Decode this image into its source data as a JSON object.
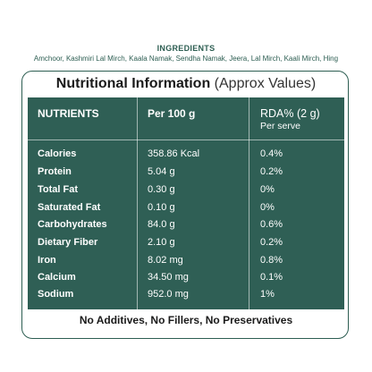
{
  "ingredients": {
    "title": "INGREDIENTS",
    "list": "Amchoor, Kashmiri Lal Mirch, Kaala Namak, Sendha Namak, Jeera, Lal Mirch, Kaali Mirch, Hing"
  },
  "card": {
    "title_bold": "Nutritional Information",
    "title_light": "(Approx Values)"
  },
  "table": {
    "headers": {
      "nutrients": "NUTRIENTS",
      "per": "Per 100 g",
      "rda": "RDA% (2 g)",
      "rda_sub": "Per serve"
    },
    "rows": [
      {
        "name": "Calories",
        "per": "358.86 Kcal",
        "rda": "0.4%"
      },
      {
        "name": "Protein",
        "per": "5.04 g",
        "rda": "0.2%"
      },
      {
        "name": "Total Fat",
        "per": "0.30 g",
        "rda": "0%"
      },
      {
        "name": "Saturated Fat",
        "per": "0.10 g",
        "rda": "0%"
      },
      {
        "name": "Carbohydrates",
        "per": "84.0 g",
        "rda": "0.6%"
      },
      {
        "name": "Dietary Fiber",
        "per": "2.10 g",
        "rda": "0.2%"
      },
      {
        "name": "Iron",
        "per": "8.02 mg",
        "rda": "0.8%"
      },
      {
        "name": "Calcium",
        "per": "34.50 mg",
        "rda": "0.1%"
      },
      {
        "name": "Sodium",
        "per": "952.0 mg",
        "rda": "1%"
      }
    ]
  },
  "footer": "No Additives, No Fillers, No Preservatives",
  "colors": {
    "panel": "#2f5f55",
    "accent": "#2d5e52"
  }
}
